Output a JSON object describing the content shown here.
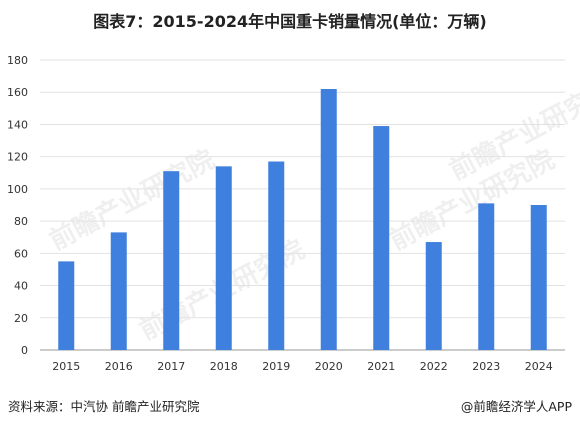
{
  "chart_data": {
    "type": "bar",
    "title": "图表7：2015-2024年中国重卡销量情况(单位：万辆)",
    "categories": [
      "2015",
      "2016",
      "2017",
      "2018",
      "2019",
      "2020",
      "2021",
      "2022",
      "2023",
      "2024"
    ],
    "values": [
      55,
      73,
      111,
      114,
      117,
      162,
      139,
      67,
      91,
      90
    ],
    "ylim": [
      0,
      180
    ],
    "yticks": [
      0,
      20,
      40,
      60,
      80,
      100,
      120,
      140,
      160,
      180
    ],
    "xlabel": "",
    "ylabel": "",
    "grid": true,
    "bar_color": "#3f7fde"
  },
  "footer": {
    "source": "资料来源：中汽协 前瞻产业研究院",
    "brand": "@前瞻经济学人APP"
  },
  "watermark": "前瞻产业研究院"
}
